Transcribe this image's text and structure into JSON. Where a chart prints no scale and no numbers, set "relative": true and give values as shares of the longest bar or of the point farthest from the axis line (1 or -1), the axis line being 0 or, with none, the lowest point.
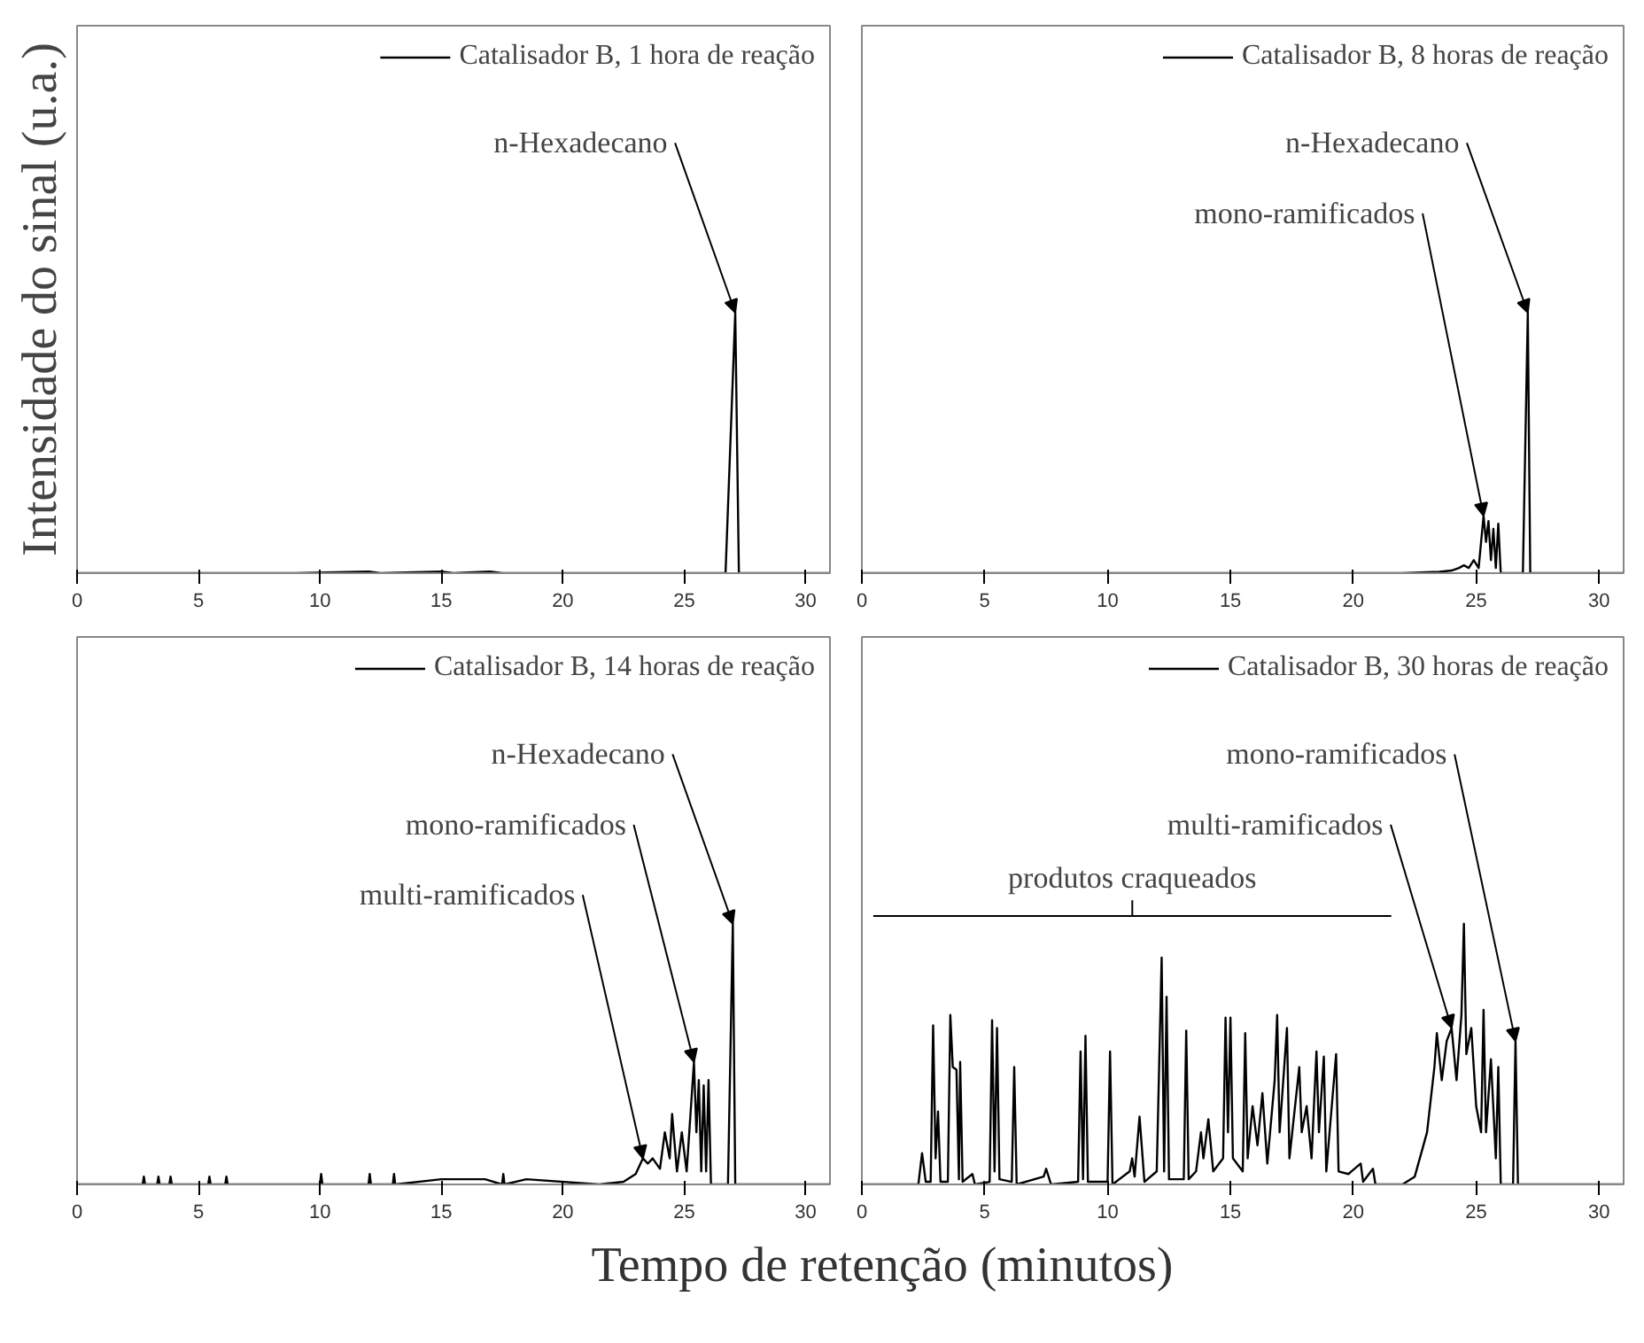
{
  "chart_data": [
    {
      "type": "line",
      "relative": true,
      "ylabel": "Intensidade do sinal (u.a.)",
      "xlim": [
        0,
        31
      ],
      "xticks": [
        0,
        5,
        10,
        15,
        20,
        25,
        30
      ],
      "tick_labels": "x",
      "legend": "top right",
      "series": [
        {
          "name": "Catalisador B, 1 hora de reação",
          "color": "#000000",
          "x": [
            0,
            9.0,
            12.0,
            12.5,
            15.0,
            15.5,
            17.0,
            17.5,
            26.7,
            27.1,
            27.25,
            31
          ],
          "values": [
            0,
            0,
            0.006,
            0,
            0.006,
            0,
            0.006,
            0,
            0,
            1,
            0,
            0
          ]
        }
      ],
      "annotations": [
        {
          "text": "n-Hexadecano",
          "x": 27.1,
          "y": 1
        }
      ]
    },
    {
      "type": "line",
      "relative": true,
      "xlim": [
        0,
        31
      ],
      "xticks": [
        0,
        5,
        10,
        15,
        20,
        25,
        30
      ],
      "tick_labels": "x",
      "legend": "top right",
      "series": [
        {
          "name": "Catalisador B, 8 horas de reação",
          "color": "#000000",
          "x": [
            0,
            22.0,
            23.5,
            24.0,
            24.3,
            24.5,
            24.7,
            24.9,
            25.1,
            25.3,
            25.4,
            25.5,
            25.6,
            25.7,
            25.8,
            25.9,
            26.0,
            26.9,
            27.1,
            27.2,
            31
          ],
          "values": [
            0,
            0,
            0.005,
            0.01,
            0.02,
            0.03,
            0.02,
            0.05,
            0.02,
            0.22,
            0.12,
            0.2,
            0.05,
            0.17,
            0.02,
            0.19,
            0,
            0,
            1,
            0,
            0
          ]
        }
      ],
      "annotations": [
        {
          "text": "n-Hexadecano",
          "x": 27.1,
          "y": 1
        },
        {
          "text": "mono-ramificados",
          "x": 25.3,
          "y": 0.22
        }
      ]
    },
    {
      "type": "line",
      "relative": true,
      "xlabel": "Tempo de retenção (minutos)",
      "xlim": [
        0,
        31
      ],
      "xticks": [
        0,
        5,
        10,
        15,
        20,
        25,
        30
      ],
      "tick_labels": "x",
      "legend": "top right",
      "series": [
        {
          "name": "Catalisador B, 14 horas de reação",
          "color": "#000000",
          "x": [
            0,
            2.7,
            2.75,
            2.8,
            3.3,
            3.35,
            3.4,
            3.8,
            3.85,
            3.9,
            5.4,
            5.45,
            5.5,
            6.1,
            6.15,
            6.2,
            10.0,
            10.05,
            10.1,
            12.0,
            12.05,
            12.1,
            13.0,
            13.05,
            13.1,
            15.0,
            16.8,
            17.5,
            17.55,
            17.6,
            18.5,
            21.5,
            22.5,
            23.0,
            23.3,
            23.5,
            23.7,
            24.0,
            24.2,
            24.4,
            24.5,
            24.7,
            24.9,
            25.1,
            25.4,
            25.5,
            25.6,
            25.7,
            25.8,
            25.9,
            26.0,
            26.1,
            26.8,
            27.0,
            27.1,
            31
          ],
          "values": [
            0,
            0,
            0.03,
            0,
            0,
            0.03,
            0,
            0,
            0.03,
            0,
            0,
            0.03,
            0,
            0,
            0.03,
            0,
            0,
            0.04,
            0,
            0,
            0.04,
            0,
            0,
            0.04,
            0,
            0.02,
            0.02,
            0,
            0.04,
            0,
            0.02,
            0,
            0.01,
            0.04,
            0.1,
            0.08,
            0.1,
            0.06,
            0.2,
            0.1,
            0.27,
            0.05,
            0.2,
            0.05,
            0.47,
            0.2,
            0.4,
            0.05,
            0.38,
            0.05,
            0.4,
            0,
            0,
            1,
            0,
            0
          ]
        }
      ],
      "annotations": [
        {
          "text": "n-Hexadecano",
          "x": 27.0,
          "y": 1
        },
        {
          "text": "mono-ramificados",
          "x": 25.4,
          "y": 0.47
        },
        {
          "text": "multi-ramificados",
          "x": 23.3,
          "y": 0.1
        }
      ]
    },
    {
      "type": "line",
      "relative": true,
      "xlim": [
        0,
        31
      ],
      "xticks": [
        0,
        5,
        10,
        15,
        20,
        25,
        30
      ],
      "tick_labels": "x",
      "legend": "top right",
      "series": [
        {
          "name": "Catalisador B, 30 horas de reação",
          "color": "#000000",
          "x": [
            0,
            2.3,
            2.45,
            2.6,
            2.8,
            2.9,
            3.0,
            3.1,
            3.2,
            3.5,
            3.6,
            3.7,
            3.85,
            3.95,
            4.0,
            4.1,
            4.5,
            4.6,
            5.2,
            5.3,
            5.4,
            5.5,
            5.6,
            6.1,
            6.2,
            6.3,
            7.4,
            7.5,
            7.7,
            8.8,
            8.9,
            9.0,
            9.1,
            9.2,
            10.0,
            10.1,
            10.2,
            10.9,
            11.0,
            11.1,
            11.3,
            11.5,
            12.0,
            12.2,
            12.3,
            12.4,
            12.5,
            13.1,
            13.2,
            13.3,
            13.6,
            13.8,
            13.9,
            14.1,
            14.3,
            14.7,
            14.8,
            14.9,
            15.0,
            15.1,
            15.5,
            15.6,
            15.7,
            15.9,
            16.1,
            16.3,
            16.5,
            16.8,
            16.9,
            17.0,
            17.3,
            17.4,
            17.8,
            17.9,
            18.1,
            18.3,
            18.5,
            18.6,
            18.8,
            18.9,
            19.3,
            19.4,
            19.8,
            20.3,
            20.4,
            20.8,
            20.9,
            22.0,
            22.5,
            23.0,
            23.3,
            23.4,
            23.6,
            23.8,
            24.0,
            24.2,
            24.4,
            24.5,
            24.6,
            24.8,
            25.0,
            25.2,
            25.3,
            25.4,
            25.6,
            25.8,
            25.9,
            26.0,
            26.5,
            26.6,
            26.7,
            31
          ],
          "values": [
            0,
            0,
            0.12,
            0.01,
            0.01,
            0.61,
            0.1,
            0.28,
            0.01,
            0.01,
            0.65,
            0.45,
            0.44,
            0.02,
            0.47,
            0.01,
            0.04,
            0,
            0.01,
            0.63,
            0.05,
            0.6,
            0.02,
            0.01,
            0.45,
            0,
            0.03,
            0.06,
            0,
            0.01,
            0.51,
            0.02,
            0.57,
            0.01,
            0.01,
            0.51,
            0,
            0.05,
            0.1,
            0.03,
            0.26,
            0.01,
            0.05,
            0.87,
            0.05,
            0.72,
            0.02,
            0.02,
            0.59,
            0.02,
            0.05,
            0.2,
            0.1,
            0.25,
            0.05,
            0.1,
            0.64,
            0.2,
            0.64,
            0.1,
            0.05,
            0.58,
            0.1,
            0.3,
            0.15,
            0.35,
            0.08,
            0.4,
            0.65,
            0.2,
            0.6,
            0.1,
            0.45,
            0.2,
            0.3,
            0.1,
            0.51,
            0.2,
            0.49,
            0.05,
            0.5,
            0.05,
            0.04,
            0.08,
            0.01,
            0.06,
            0,
            0,
            0.03,
            0.2,
            0.45,
            0.58,
            0.4,
            0.55,
            0.6,
            0.4,
            0.65,
            1,
            0.5,
            0.6,
            0.3,
            0.2,
            0.67,
            0.2,
            0.48,
            0.1,
            0.45,
            0,
            0,
            0.55,
            0,
            0
          ]
        }
      ],
      "annotations": [
        {
          "text": "mono-ramificados",
          "x": 26.6,
          "y": 0.55
        },
        {
          "text": "multi-ramificados",
          "x": 24.0,
          "y": 0.6
        },
        "produtos craqueados"
      ]
    }
  ]
}
